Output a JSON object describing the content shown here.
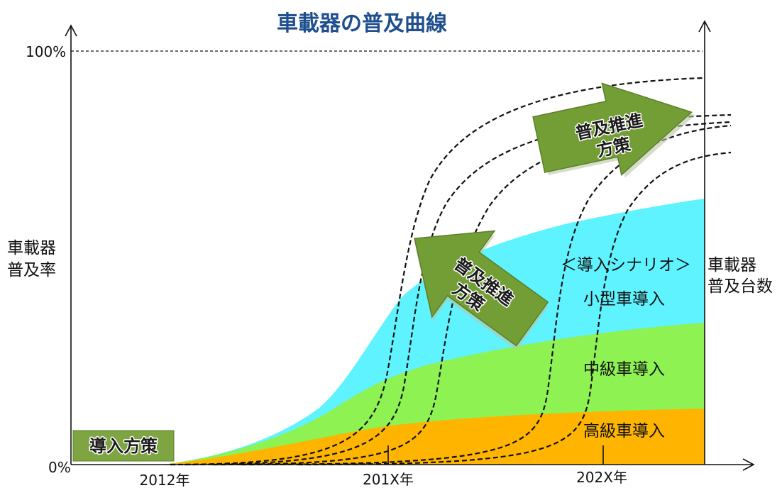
{
  "title": "車載器の普及曲線",
  "left_axis": {
    "label_line1": "車載器",
    "label_line2": "普及率",
    "tick_100": "100%",
    "tick_0": "0%"
  },
  "right_axis": {
    "label_line1": "車載器",
    "label_line2": "普及台数"
  },
  "x_axis": {
    "ticks": [
      "2012年",
      "201X年",
      "202X年"
    ]
  },
  "policy_box": {
    "label": "導入方策"
  },
  "scenario": {
    "heading": "＜導入シナリオ＞",
    "layers": [
      {
        "label": "小型車導入"
      },
      {
        "label": "中級車導入"
      },
      {
        "label": "高級車導入"
      }
    ]
  },
  "arrows": [
    {
      "line1": "普及推進",
      "line2": "方策"
    },
    {
      "line1": "普及推進",
      "line2": "方策"
    }
  ],
  "colors": {
    "title": "#1f4f8f",
    "small_car_area": "#5ef3ff",
    "mid_car_area": "#8ef253",
    "luxury_car_area": "#ffb400",
    "arrow_fill": "#739e36",
    "policy_box_fill": "#7ea542",
    "curve": "#111111"
  }
}
